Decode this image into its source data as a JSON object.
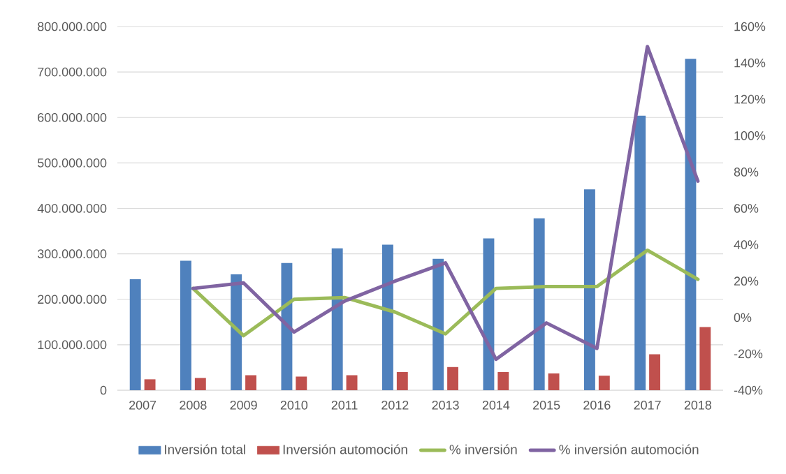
{
  "chart_data": {
    "type": "bar",
    "categories": [
      "2007",
      "2008",
      "2009",
      "2010",
      "2011",
      "2012",
      "2013",
      "2014",
      "2015",
      "2016",
      "2017",
      "2018"
    ],
    "series": [
      {
        "name": "Inversión total",
        "type": "bar",
        "color": "#4f81bd",
        "values": [
          244000000,
          285000000,
          255000000,
          280000000,
          312000000,
          320000000,
          289000000,
          334000000,
          378000000,
          442000000,
          604000000,
          729000000
        ]
      },
      {
        "name": "Inversión automoción",
        "type": "bar",
        "color": "#c0504d",
        "values": [
          24000000,
          27000000,
          33000000,
          30000000,
          33000000,
          40000000,
          51000000,
          40000000,
          37000000,
          32000000,
          79000000,
          139000000
        ]
      },
      {
        "name": "% inversión",
        "type": "line",
        "axis": "y2",
        "color": "#9bbb59",
        "values": [
          null,
          16,
          -10,
          10,
          11,
          3,
          -9,
          16,
          17,
          17,
          37,
          21
        ]
      },
      {
        "name": "% inversión automoción",
        "type": "line",
        "axis": "y2",
        "color": "#8064a2",
        "values": [
          null,
          16,
          19,
          -8,
          9,
          20,
          30,
          -23,
          -3,
          -17,
          149,
          75
        ]
      }
    ],
    "ylim": [
      0,
      800000000
    ],
    "yticks": [
      0,
      {
        "value": 100000000,
        "label": "100.000.000"
      },
      {
        "value": 200000000,
        "label": "200.000.000"
      },
      {
        "value": 300000000,
        "label": "300.000.000"
      },
      {
        "value": 400000000,
        "label": "400.000.000"
      },
      {
        "value": 500000000,
        "label": "500.000.000"
      },
      {
        "value": 600000000,
        "label": "600.000.000"
      },
      {
        "value": 700000000,
        "label": "700.000.000"
      },
      {
        "value": 800000000,
        "label": "800.000.000"
      }
    ],
    "y2lim": [
      -40,
      160
    ],
    "y2ticks": [
      {
        "value": -40,
        "label": "-40%"
      },
      {
        "value": -20,
        "label": "-20%"
      },
      {
        "value": 0,
        "label": "0%"
      },
      {
        "value": 20,
        "label": "20%"
      },
      {
        "value": 40,
        "label": "40%"
      },
      {
        "value": 60,
        "label": "60%"
      },
      {
        "value": 80,
        "label": "80%"
      },
      {
        "value": 100,
        "label": "100%"
      },
      {
        "value": 120,
        "label": "120%"
      },
      {
        "value": 140,
        "label": "140%"
      },
      {
        "value": 160,
        "label": "160%"
      }
    ],
    "grid": "y",
    "legend": "bottom"
  }
}
